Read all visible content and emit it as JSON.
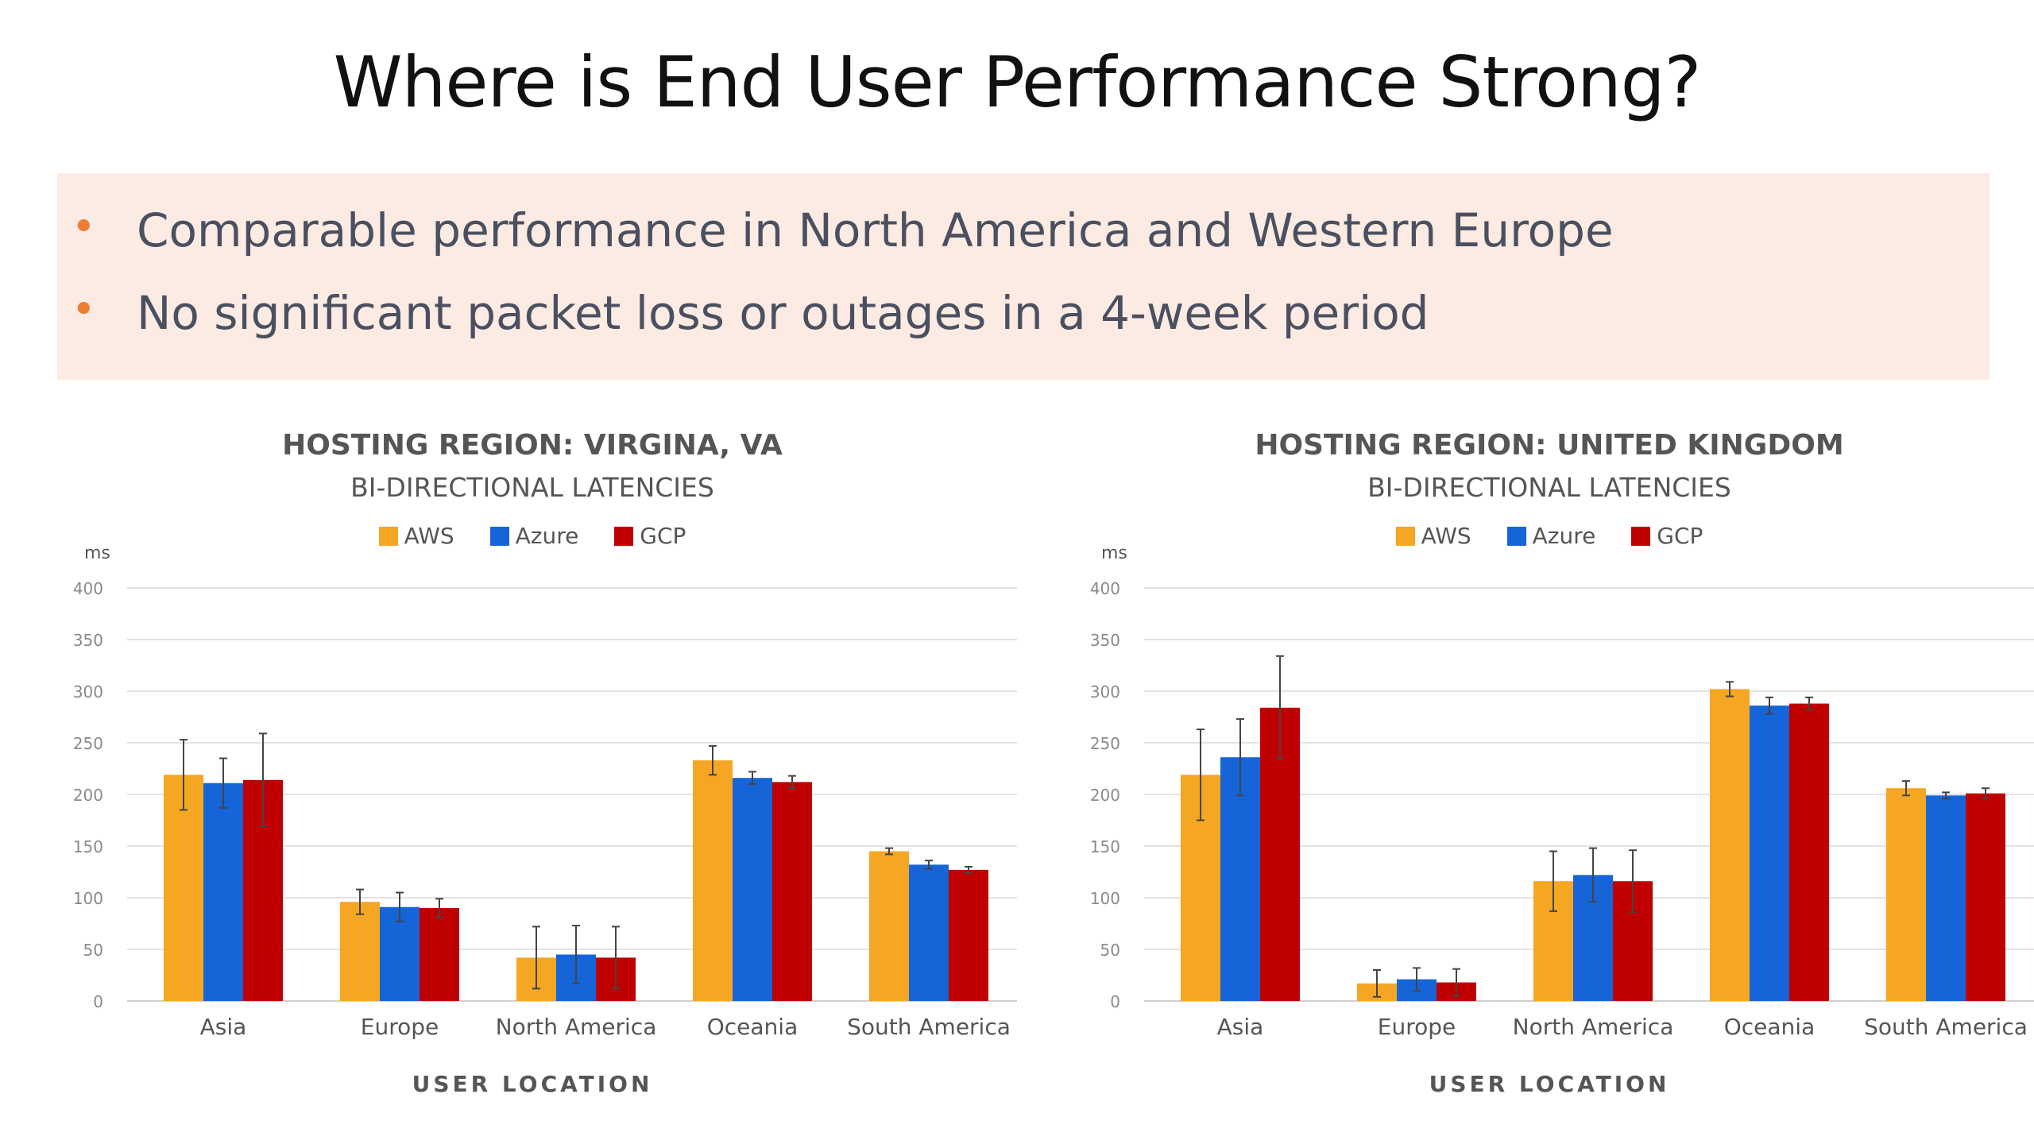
{
  "slide": {
    "title": "Where is End User Performance Strong?",
    "bullets": [
      "Comparable performance in North America and Western Europe",
      "No significant packet loss or outages in a 4-week period"
    ],
    "bullet_color": "#ed7d31",
    "callout_color": "#fbebe3"
  },
  "chart_data": [
    {
      "type": "bar",
      "title": "HOSTING REGION: VIRGINA, VA",
      "subtitle": "BI-DIRECTIONAL LATENCIES",
      "xlabel": "USER LOCATION",
      "ylabel": "ms",
      "ylim": [
        0,
        400
      ],
      "yticks": [
        0,
        50,
        100,
        150,
        200,
        250,
        300,
        350,
        400
      ],
      "grid": true,
      "legend_position": "top",
      "categories": [
        "Asia",
        "Europe",
        "North America",
        "Oceania",
        "South America"
      ],
      "series": [
        {
          "name": "AWS",
          "color": "#f5a623",
          "values": [
            219,
            96,
            42,
            233,
            145
          ],
          "errors": [
            34,
            12,
            30,
            14,
            3
          ]
        },
        {
          "name": "Azure",
          "color": "#1565d8",
          "values": [
            211,
            91,
            45,
            216,
            132
          ],
          "errors": [
            24,
            14,
            28,
            6,
            4
          ]
        },
        {
          "name": "GCP",
          "color": "#c00000",
          "values": [
            214,
            90,
            42,
            212,
            127
          ],
          "errors": [
            45,
            9,
            30,
            6,
            3
          ]
        }
      ]
    },
    {
      "type": "bar",
      "title": "HOSTING REGION: UNITED KINGDOM",
      "subtitle": "BI-DIRECTIONAL LATENCIES",
      "xlabel": "USER LOCATION",
      "ylabel": "ms",
      "ylim": [
        0,
        400
      ],
      "yticks": [
        0,
        50,
        100,
        150,
        200,
        250,
        300,
        350,
        400
      ],
      "grid": true,
      "legend_position": "top",
      "categories": [
        "Asia",
        "Europe",
        "North America",
        "Oceania",
        "South America"
      ],
      "series": [
        {
          "name": "AWS",
          "color": "#f5a623",
          "values": [
            219,
            17,
            116,
            302,
            206
          ],
          "errors": [
            44,
            13,
            29,
            7,
            7
          ]
        },
        {
          "name": "Azure",
          "color": "#1565d8",
          "values": [
            236,
            21,
            122,
            286,
            199
          ],
          "errors": [
            37,
            11,
            26,
            8,
            3
          ]
        },
        {
          "name": "GCP",
          "color": "#c00000",
          "values": [
            284,
            18,
            116,
            288,
            201
          ],
          "errors": [
            50,
            13,
            30,
            6,
            5
          ]
        }
      ]
    }
  ]
}
